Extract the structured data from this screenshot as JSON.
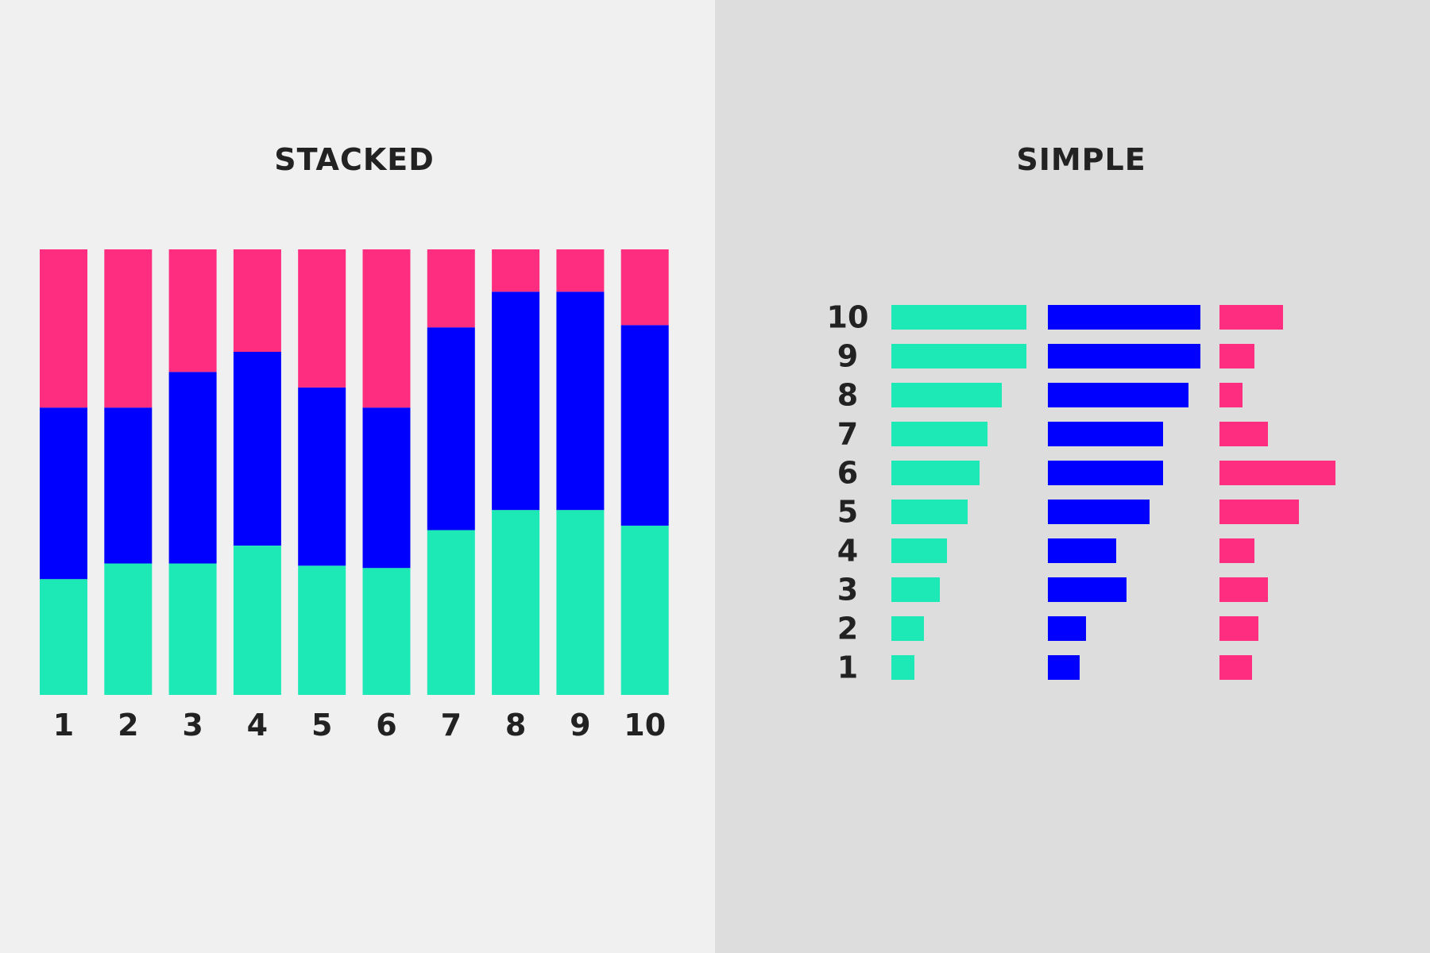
{
  "colors": {
    "left_bg": "#f0f0f0",
    "right_bg": "#dddddd",
    "green": "#1de9b6",
    "blue": "#0000ff",
    "pink": "#ff2d80"
  },
  "chart_data": [
    {
      "type": "bar",
      "stacked": true,
      "normalized": true,
      "title": "STACKED",
      "categories": [
        "1",
        "2",
        "3",
        "4",
        "5",
        "6",
        "7",
        "8",
        "9",
        "10"
      ],
      "series": [
        {
          "color": "#1de9b6",
          "values": [
            0.26,
            0.295,
            0.295,
            0.335,
            0.29,
            0.285,
            0.37,
            0.415,
            0.415,
            0.38
          ]
        },
        {
          "color": "#0000ff",
          "values": [
            0.385,
            0.35,
            0.43,
            0.435,
            0.4,
            0.36,
            0.455,
            0.49,
            0.49,
            0.45
          ]
        },
        {
          "color": "#ff2d80",
          "values": [
            0.355,
            0.355,
            0.275,
            0.23,
            0.31,
            0.355,
            0.175,
            0.095,
            0.095,
            0.17
          ]
        }
      ],
      "ylim": [
        0,
        1
      ]
    },
    {
      "type": "bar",
      "orientation": "horizontal",
      "title": "SIMPLE",
      "categories": [
        "10",
        "9",
        "8",
        "7",
        "6",
        "5",
        "4",
        "3",
        "2",
        "1"
      ],
      "series": [
        {
          "color": "#1de9b6",
          "values": [
            170,
            170,
            139,
            121,
            111,
            96,
            70,
            61,
            41,
            29
          ]
        },
        {
          "color": "#0000ff",
          "values": [
            192,
            192,
            177,
            145,
            145,
            128,
            86,
            99,
            48,
            40
          ]
        },
        {
          "color": "#ff2d80",
          "values": [
            80,
            44,
            29,
            61,
            146,
            100,
            44,
            61,
            49,
            41
          ]
        }
      ]
    }
  ]
}
